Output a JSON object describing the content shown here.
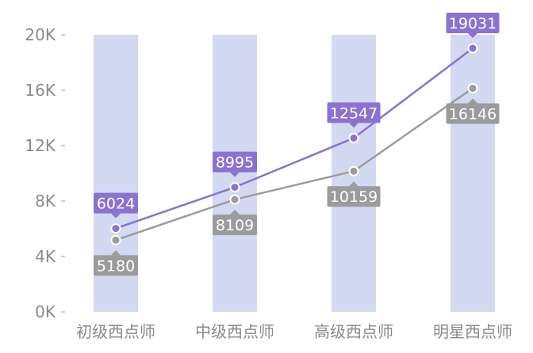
{
  "chart_data": {
    "type": "line",
    "categories": [
      "初级西点师",
      "中级西点师",
      "高级西点师",
      "明星西点师"
    ],
    "series": [
      {
        "values": [
          6024,
          8995,
          12547,
          19031
        ],
        "color": "#8a72d0",
        "label_position": "above"
      },
      {
        "values": [
          5180,
          8109,
          10159,
          16146
        ],
        "color": "#9b9b9b",
        "label_position": "below"
      }
    ],
    "column_band_color": "#d4d9f3",
    "y_ticks": [
      {
        "value": 0,
        "label": "0K"
      },
      {
        "value": 4000,
        "label": "4K"
      },
      {
        "value": 8000,
        "label": "8K"
      },
      {
        "value": 12000,
        "label": "12K"
      },
      {
        "value": 16000,
        "label": "16K"
      },
      {
        "value": 20000,
        "label": "20K"
      }
    ],
    "ylim": [
      0,
      20000
    ],
    "grid": false,
    "title": "",
    "xlabel": "",
    "ylabel": ""
  }
}
